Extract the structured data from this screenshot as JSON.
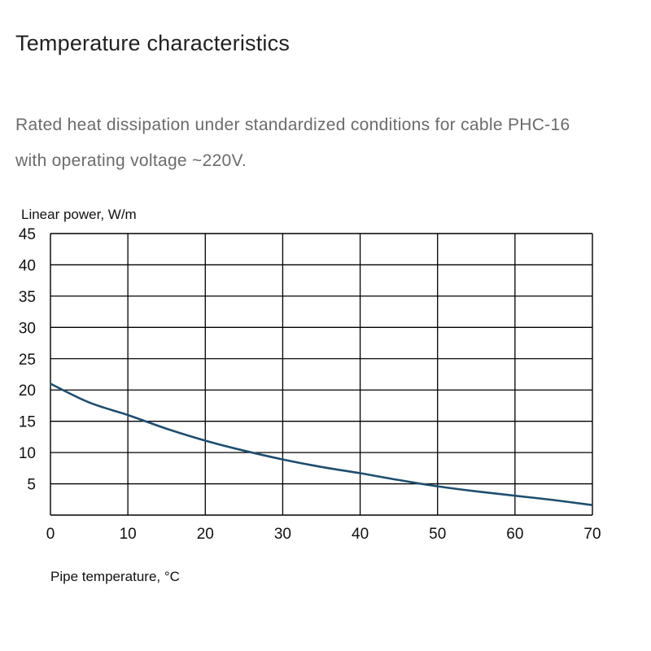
{
  "header": {
    "title": "Temperature characteristics"
  },
  "description": {
    "line1": "Rated heat dissipation under standardized conditions for cable PHC-16",
    "line2": "with operating voltage ~220V."
  },
  "colors": {
    "curve": "#1f4e6e",
    "grid": "#000000",
    "text": "#111111",
    "description": "#6b6b6b"
  },
  "chart_data": {
    "type": "line",
    "title": "",
    "ylabel": "Linear power, W/m",
    "xlabel": "Pipe temperature, °C",
    "xlim": [
      0,
      70
    ],
    "ylim": [
      0,
      45
    ],
    "xticks": [
      0,
      10,
      20,
      30,
      40,
      50,
      60,
      70
    ],
    "yticks": [
      5,
      10,
      15,
      20,
      25,
      30,
      35,
      40,
      45
    ],
    "grid": true,
    "series": [
      {
        "x": [
          0,
          5,
          10,
          15,
          20,
          25,
          30,
          35,
          40,
          45,
          50,
          55,
          60,
          65,
          70
        ],
        "values": [
          21,
          18,
          16,
          13.8,
          11.9,
          10.3,
          8.9,
          7.7,
          6.7,
          5.6,
          4.6,
          3.8,
          3.1,
          2.4,
          1.6
        ]
      }
    ]
  }
}
